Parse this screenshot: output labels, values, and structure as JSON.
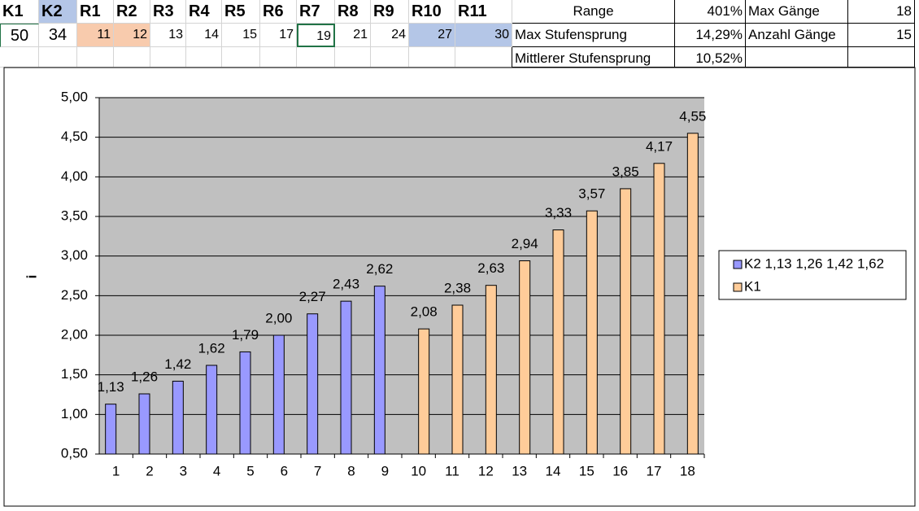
{
  "sheet": {
    "headers": [
      "K1",
      "K2",
      "R1",
      "R2",
      "R3",
      "R4",
      "R5",
      "R6",
      "R7",
      "R8",
      "R9",
      "R10",
      "R11"
    ],
    "values": [
      50,
      34,
      11,
      12,
      13,
      14,
      15,
      17,
      19,
      21,
      24,
      27,
      30
    ]
  },
  "stats": {
    "rows": [
      [
        "Range",
        "401%",
        "Max Gänge",
        18
      ],
      [
        "Max Stufensprung",
        "14,29%",
        "Anzahl Gänge",
        15
      ],
      [
        "Mittlerer Stufensprung",
        "10,52%"
      ]
    ]
  },
  "chart_data": {
    "type": "bar",
    "y_label": "i",
    "categories": [
      1,
      2,
      3,
      4,
      5,
      6,
      7,
      8,
      9,
      10,
      11,
      12,
      13,
      14,
      15,
      16,
      17,
      18
    ],
    "series": [
      {
        "name": "K2 1,13 1,26 1,42 1,62",
        "color": "#9999ff",
        "values": [
          1.13,
          1.26,
          1.42,
          1.62,
          1.79,
          2.0,
          2.27,
          2.43,
          2.62,
          null,
          null,
          null,
          null,
          null,
          null,
          null,
          null,
          null
        ],
        "value_labels": [
          "1,13",
          "1,26",
          "1,42",
          "1,62",
          "1,79",
          "2,00",
          "2,27",
          "2,43",
          "2,62",
          null,
          null,
          null,
          null,
          null,
          null,
          null,
          null,
          null
        ]
      },
      {
        "name": "K1",
        "color": "#ffcc99",
        "values": [
          null,
          null,
          null,
          null,
          null,
          null,
          null,
          null,
          null,
          2.08,
          2.38,
          2.63,
          2.94,
          3.33,
          3.57,
          3.85,
          4.17,
          4.55
        ],
        "value_labels": [
          null,
          null,
          null,
          null,
          null,
          null,
          null,
          null,
          null,
          "2,08",
          "2,38",
          "2,63",
          "2,94",
          "3,33",
          "3,57",
          "3,85",
          "4,17",
          "4,55"
        ]
      }
    ],
    "ylim": [
      0.5,
      5
    ],
    "yticks": [
      {
        "value": 0.5,
        "label": "0,50"
      },
      {
        "value": 1,
        "label": "1,00"
      },
      {
        "value": 1.5,
        "label": "1,50"
      },
      {
        "value": 2,
        "label": "2,00"
      },
      {
        "value": 2.5,
        "label": "2,50"
      },
      {
        "value": 3,
        "label": "3,00"
      },
      {
        "value": 3.5,
        "label": "3,50"
      },
      {
        "value": 4,
        "label": "4,00"
      },
      {
        "value": 4.5,
        "label": "4,50"
      },
      {
        "value": 5,
        "label": "5,00"
      }
    ],
    "grid": true
  }
}
